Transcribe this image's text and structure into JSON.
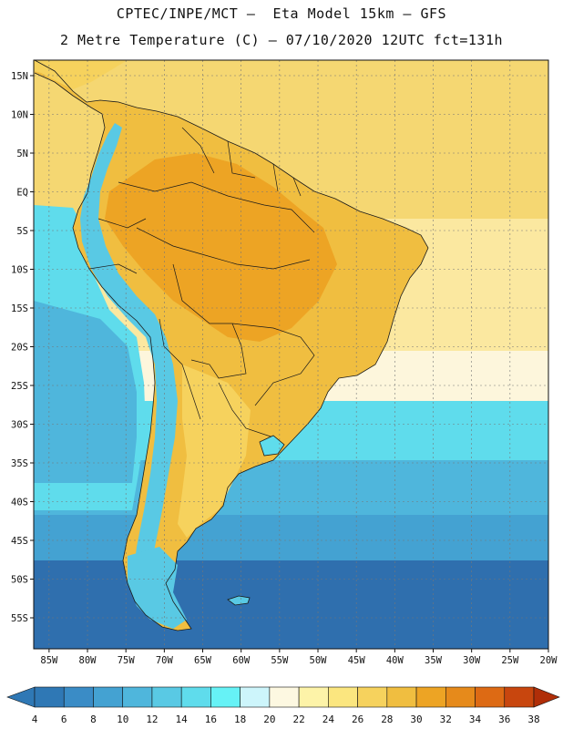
{
  "header": {
    "line1": "CPTEC/INPE/MCT –  Eta Model 15km – GFS",
    "line2": "2 Metre Temperature (C) – 07/10/2020 12UTC fct=131h"
  },
  "axes": {
    "lat_labels": [
      "15N",
      "10N",
      "5N",
      "EQ",
      "5S",
      "10S",
      "15S",
      "20S",
      "25S",
      "30S",
      "35S",
      "40S",
      "45S",
      "50S",
      "55S"
    ],
    "lon_labels": [
      "85W",
      "80W",
      "75W",
      "70W",
      "65W",
      "60W",
      "55W",
      "50W",
      "45W",
      "40W",
      "35W",
      "30W",
      "25W",
      "20W"
    ]
  },
  "colorbar": {
    "ticks": [
      "4",
      "6",
      "8",
      "10",
      "12",
      "14",
      "16",
      "18",
      "20",
      "22",
      "24",
      "26",
      "28",
      "30",
      "32",
      "34",
      "36",
      "38"
    ],
    "colors": [
      "#2f78b5",
      "#3a8cc6",
      "#44a2d2",
      "#4fb6dc",
      "#59c9e4",
      "#5fdcec",
      "#66f2f6",
      "#cdf5fb",
      "#fdf8e1",
      "#fdf3a8",
      "#fbe67f",
      "#f6d25d",
      "#f0be40",
      "#eda424",
      "#e68a1b",
      "#dd6a14",
      "#c8460e",
      "#b02e08"
    ]
  },
  "map_colors": {
    "ocean_tropical": "#f5d772",
    "ocean_subtrop": "#fbe8a0",
    "ocean_pale": "#fdf6dc",
    "ocean_cyan": "#5fdcec",
    "ocean_mid": "#4fb6dc",
    "ocean_cool": "#44a2d2",
    "ocean_cold": "#2f6fae",
    "land_hot": "#eda424",
    "land_warm": "#f0be40",
    "land_mild": "#f6d25d",
    "andes": "#59c9e4",
    "border": "#1a1a1a"
  }
}
